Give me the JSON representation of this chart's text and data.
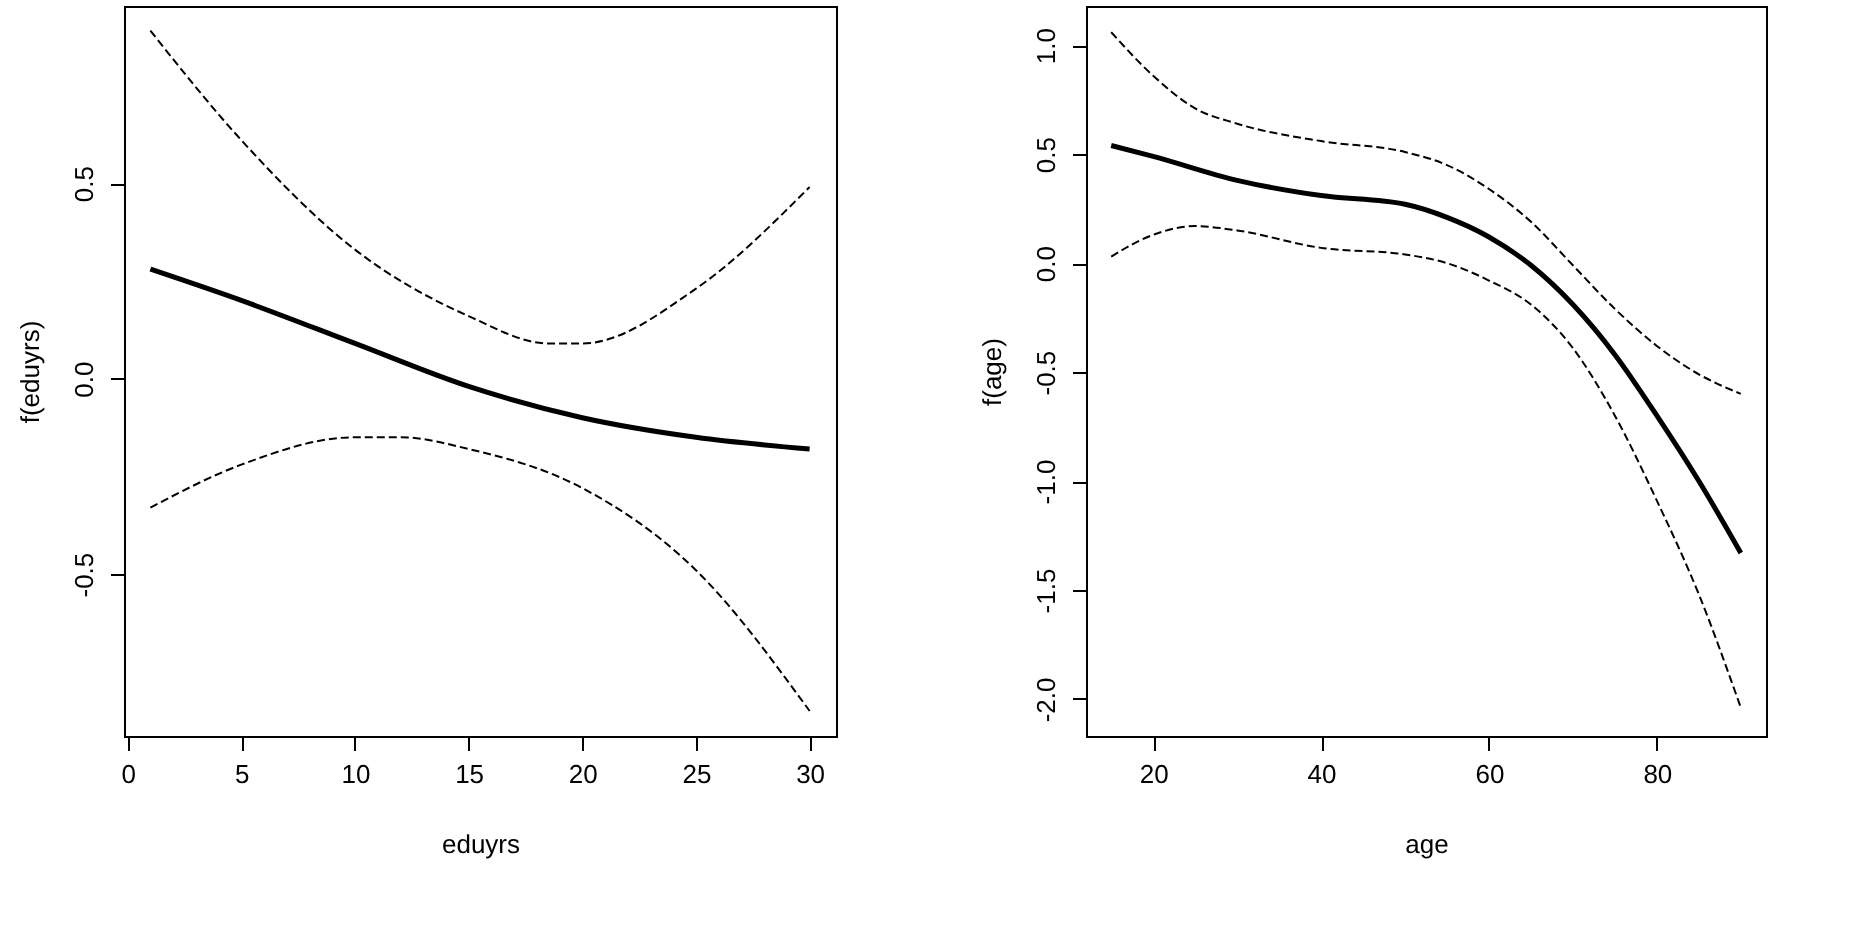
{
  "chart_data": [
    {
      "type": "line",
      "xlabel": "eduyrs",
      "ylabel": "f(eduyrs)",
      "xlim": [
        -0.16,
        31.16
      ],
      "ylim": [
        -0.914,
        0.953
      ],
      "xticks": [
        0,
        5,
        10,
        15,
        20,
        25,
        30
      ],
      "yticks": [
        {
          "value": -0.5,
          "label": "-0.5"
        },
        {
          "value": 0,
          "label": "0.0"
        },
        {
          "value": 0.5,
          "label": "0.5"
        }
      ],
      "grid": false,
      "series": [
        {
          "color": "#000000",
          "line_style": "solid",
          "x": [
            1,
            5,
            10,
            15,
            20,
            25,
            30
          ],
          "values": [
            0.28,
            0.2,
            0.09,
            -0.02,
            -0.1,
            -0.15,
            -0.18
          ]
        },
        {
          "color": "#000000",
          "line_style": "dashed",
          "x": [
            1,
            5,
            10,
            15,
            18.5,
            20,
            25,
            30
          ],
          "values": [
            0.89,
            0.61,
            0.33,
            0.16,
            0.09,
            0.09,
            0.23,
            0.49
          ]
        },
        {
          "color": "#000000",
          "line_style": "dashed",
          "x": [
            1,
            5,
            10,
            12,
            15,
            20,
            25,
            30
          ],
          "values": [
            -0.33,
            -0.22,
            -0.15,
            -0.15,
            -0.18,
            -0.28,
            -0.49,
            -0.85
          ]
        }
      ]
    },
    {
      "type": "line",
      "xlabel": "age",
      "ylabel": "f(age)",
      "xlim": [
        12,
        93
      ],
      "ylim": [
        -2.17,
        1.18
      ],
      "xticks": [
        20,
        40,
        60,
        80
      ],
      "yticks": [
        {
          "value": -2,
          "label": "-2.0"
        },
        {
          "value": -1.5,
          "label": "-1.5"
        },
        {
          "value": -1,
          "label": "-1.0"
        },
        {
          "value": -0.5,
          "label": "-0.5"
        },
        {
          "value": 0,
          "label": "0.0"
        },
        {
          "value": 0.5,
          "label": "0.5"
        },
        {
          "value": 1,
          "label": "1.0"
        }
      ],
      "grid": false,
      "series": [
        {
          "color": "#000000",
          "line_style": "solid",
          "x": [
            15,
            20,
            30,
            40,
            50,
            55,
            60,
            65,
            70,
            75,
            80,
            85,
            90
          ],
          "values": [
            0.54,
            0.49,
            0.38,
            0.31,
            0.27,
            0.21,
            0.12,
            -0.01,
            -0.19,
            -0.42,
            -0.7,
            -1.0,
            -1.33
          ]
        },
        {
          "color": "#000000",
          "line_style": "dashed",
          "x": [
            15,
            20,
            25,
            30,
            40,
            50,
            55,
            60,
            65,
            70,
            75,
            80,
            85,
            90
          ],
          "values": [
            1.06,
            0.86,
            0.71,
            0.64,
            0.56,
            0.51,
            0.45,
            0.34,
            0.19,
            -0.01,
            -0.21,
            -0.38,
            -0.51,
            -0.6
          ]
        },
        {
          "color": "#000000",
          "line_style": "dashed",
          "x": [
            15,
            20,
            25,
            30,
            40,
            50,
            55,
            60,
            65,
            70,
            75,
            80,
            85,
            90
          ],
          "values": [
            0.03,
            0.13,
            0.17,
            0.15,
            0.07,
            0.04,
            0.0,
            -0.08,
            -0.19,
            -0.39,
            -0.7,
            -1.09,
            -1.52,
            -2.04
          ]
        }
      ]
    }
  ]
}
